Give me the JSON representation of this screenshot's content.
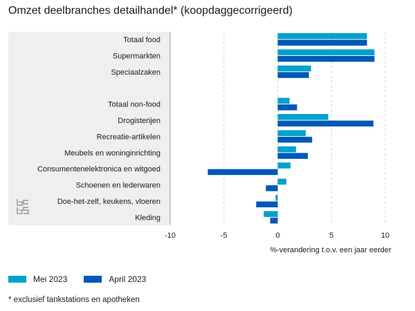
{
  "title": "Omzet deelbranches detailhandel* (koopdaggecorrigeerd)",
  "footnote": "* exclusief tankstations en apotheken",
  "colors": {
    "mei": "#00a1cd",
    "april": "#0058b8",
    "panel": "#efefef",
    "grid": "#d6d6d6"
  },
  "logo_icon": "cbs-logo-icon",
  "chart_data": {
    "type": "bar",
    "orientation": "horizontal",
    "title": "Omzet deelbranches detailhandel* (koopdaggecorrigeerd)",
    "xlabel": "%-verandering t.o.v. een jaar eerder",
    "xlim": [
      -10,
      10
    ],
    "xticks": [
      "-10",
      "-5",
      "0",
      "5",
      "10"
    ],
    "categories": [
      "Totaal food",
      "Supermarkten",
      "Speciaalzaken",
      "",
      "Totaal non-food",
      "Drogisterijen",
      "Recreatie-artikelen",
      "Meubels en woninginrichting",
      "Consumentenelektronica en witgoed",
      "Schoenen en lederwaren",
      "Doe-het-zelf, keukens, vloeren",
      "Kleding"
    ],
    "series": [
      {
        "name": "Mei 2023",
        "color": "#00a1cd",
        "values": [
          8.3,
          9.0,
          3.1,
          null,
          1.1,
          4.7,
          2.6,
          1.7,
          1.2,
          0.8,
          -0.2,
          -1.3
        ]
      },
      {
        "name": "April 2023",
        "color": "#0058b8",
        "values": [
          8.3,
          9.0,
          2.9,
          null,
          1.8,
          8.9,
          3.2,
          2.8,
          -6.5,
          -1.1,
          -2.0,
          -0.7
        ]
      }
    ],
    "grid": true,
    "legend_position": "bottom-left"
  }
}
